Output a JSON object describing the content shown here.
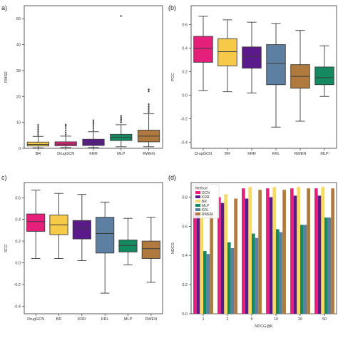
{
  "figure": {
    "panel_labels": [
      "a)",
      "(b)",
      "c)",
      "(d)"
    ]
  },
  "chart_data": [
    {
      "panel": "a)",
      "type": "box",
      "title": "",
      "xlabel": "",
      "ylabel": "RMSE",
      "ylim": [
        0,
        55
      ],
      "yticks": [
        0,
        10,
        20,
        30,
        40,
        50
      ],
      "grid": false,
      "categories": [
        "BR",
        "DrugGCN",
        "KRR",
        "MLP",
        "RWEN"
      ],
      "colors": [
        "#f7c948",
        "#e6207a",
        "#5a1a8c",
        "#158a60",
        "#b07a3e"
      ],
      "boxes": [
        {
          "whislo": 0.2,
          "q1": 0.9,
          "med": 1.5,
          "q3": 2.4,
          "whishi": 4.6,
          "fliers": [
            5.2,
            5.9,
            6.6,
            7.4,
            8.2,
            9.0
          ]
        },
        {
          "whislo": 0.3,
          "q1": 1.0,
          "med": 1.6,
          "q3": 2.5,
          "whishi": 4.7,
          "fliers": [
            5.3,
            6.1,
            6.9,
            7.8,
            8.6,
            9.1
          ]
        },
        {
          "whislo": 0.3,
          "q1": 1.1,
          "med": 2.0,
          "q3": 3.5,
          "whishi": 6.4,
          "fliers": [
            7.0,
            7.8,
            8.6,
            9.4,
            10.1,
            10.8
          ]
        },
        {
          "whislo": 0.6,
          "q1": 3.0,
          "med": 4.2,
          "q3": 5.4,
          "whishi": 9.1,
          "fliers": [
            10.0,
            10.6,
            11.2,
            11.9,
            12.5,
            51.0
          ]
        },
        {
          "whislo": 0.6,
          "q1": 2.5,
          "med": 4.7,
          "q3": 7.0,
          "whishi": 13.3,
          "fliers": [
            14.0,
            14.8,
            15.5,
            16.2,
            17.0,
            22.0,
            22.7
          ]
        }
      ]
    },
    {
      "panel": "(b)",
      "type": "box",
      "title": "",
      "xlabel": "",
      "ylabel": "PCC",
      "ylim": [
        -0.45,
        0.76
      ],
      "yticks": [
        -0.4,
        -0.2,
        0.0,
        0.2,
        0.4,
        0.6
      ],
      "grid": false,
      "categories": [
        "DrugGCN",
        "BR",
        "KRR",
        "KRL",
        "RWEN",
        "MLP"
      ],
      "colors": [
        "#e6207a",
        "#f7c948",
        "#5a1a8c",
        "#5d7fa1",
        "#b07a3e",
        "#158a60"
      ],
      "boxes": [
        {
          "whislo": 0.04,
          "q1": 0.28,
          "med": 0.4,
          "q3": 0.5,
          "whishi": 0.67,
          "fliers": []
        },
        {
          "whislo": 0.03,
          "q1": 0.25,
          "med": 0.37,
          "q3": 0.48,
          "whishi": 0.64,
          "fliers": []
        },
        {
          "whislo": 0.02,
          "q1": 0.23,
          "med": 0.33,
          "q3": 0.41,
          "whishi": 0.62,
          "fliers": []
        },
        {
          "whislo": -0.27,
          "q1": 0.09,
          "med": 0.27,
          "q3": 0.43,
          "whishi": 0.61,
          "fliers": []
        },
        {
          "whislo": -0.22,
          "q1": 0.06,
          "med": 0.16,
          "q3": 0.26,
          "whishi": 0.55,
          "fliers": []
        },
        {
          "whislo": -0.01,
          "q1": 0.09,
          "med": 0.15,
          "q3": 0.24,
          "whishi": 0.42,
          "fliers": []
        }
      ]
    },
    {
      "panel": "c)",
      "type": "box",
      "title": "",
      "xlabel": "",
      "ylabel": "SCC",
      "ylim": [
        -0.47,
        0.74
      ],
      "yticks": [
        -0.4,
        -0.2,
        0.0,
        0.2,
        0.4,
        0.6
      ],
      "grid": false,
      "categories": [
        "DrugGCN",
        "BR",
        "KRR",
        "KRL",
        "MLP",
        "RWEN"
      ],
      "colors": [
        "#e6207a",
        "#f7c948",
        "#5a1a8c",
        "#5d7fa1",
        "#158a60",
        "#b07a3e"
      ],
      "boxes": [
        {
          "whislo": 0.04,
          "q1": 0.29,
          "med": 0.38,
          "q3": 0.45,
          "whishi": 0.67,
          "fliers": []
        },
        {
          "whislo": 0.04,
          "q1": 0.26,
          "med": 0.35,
          "q3": 0.44,
          "whishi": 0.64,
          "fliers": []
        },
        {
          "whislo": 0.02,
          "q1": 0.22,
          "med": 0.32,
          "q3": 0.39,
          "whishi": 0.63,
          "fliers": []
        },
        {
          "whislo": -0.28,
          "q1": 0.09,
          "med": 0.27,
          "q3": 0.42,
          "whishi": 0.56,
          "fliers": []
        },
        {
          "whislo": -0.02,
          "q1": 0.1,
          "med": 0.16,
          "q3": 0.21,
          "whishi": 0.41,
          "fliers": []
        },
        {
          "whislo": -0.18,
          "q1": 0.04,
          "med": 0.13,
          "q3": 0.2,
          "whishi": 0.42,
          "fliers": []
        }
      ]
    },
    {
      "panel": "(d)",
      "type": "bar",
      "title": "",
      "xlabel": "NDCG@K",
      "ylabel": "NDCG",
      "ylim": [
        0,
        0.9
      ],
      "yticks": [
        0.0,
        0.2,
        0.4,
        0.6,
        0.8
      ],
      "grid": false,
      "legend": {
        "title": "Method",
        "placement": "top-left"
      },
      "categories": [
        "1",
        "2",
        "5",
        "10",
        "20",
        "50"
      ],
      "series": [
        {
          "name": "GCN",
          "color": "#e6207a",
          "values": [
            0.7,
            0.8,
            0.86,
            0.86,
            0.86,
            0.86
          ]
        },
        {
          "name": "KRR",
          "color": "#5a1a8c",
          "values": [
            0.68,
            0.76,
            0.79,
            0.8,
            0.81,
            0.81
          ]
        },
        {
          "name": "BR",
          "color": "#f7d96b",
          "values": [
            0.85,
            0.82,
            0.87,
            0.87,
            0.87,
            0.87
          ]
        },
        {
          "name": "MLP",
          "color": "#158a60",
          "values": [
            0.43,
            0.49,
            0.55,
            0.58,
            0.61,
            0.66
          ]
        },
        {
          "name": "KRL",
          "color": "#5d7fa1",
          "values": [
            0.41,
            0.45,
            0.52,
            0.56,
            0.61,
            0.66
          ]
        },
        {
          "name": "RWEN",
          "color": "#b07a3e",
          "values": [
            0.69,
            0.79,
            0.85,
            0.85,
            0.86,
            0.86
          ]
        }
      ]
    }
  ]
}
